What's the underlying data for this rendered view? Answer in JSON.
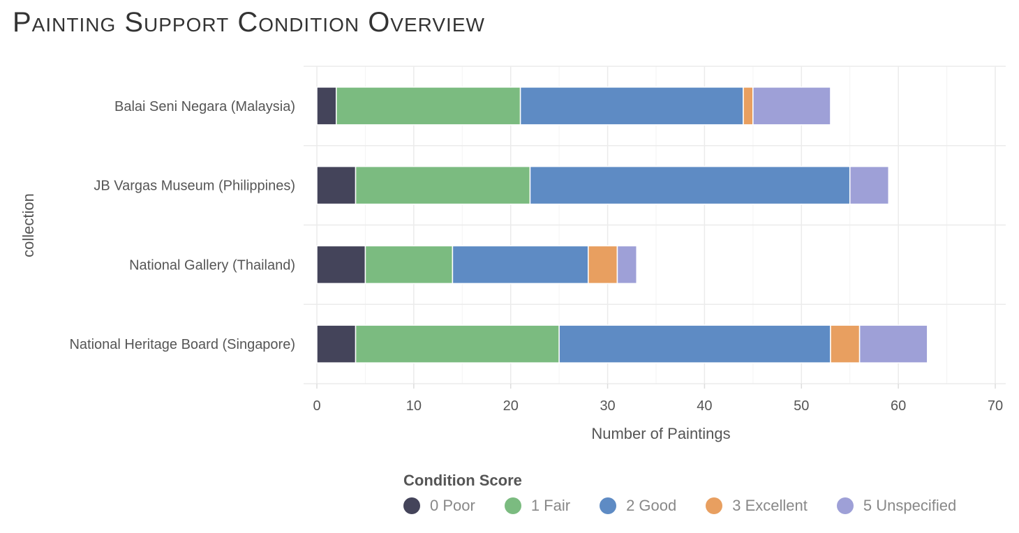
{
  "title": "Painting Support Condition Overview",
  "chart_data": {
    "type": "bar",
    "orientation": "horizontal",
    "stacked": true,
    "categories": [
      "Balai Seni Negara (Malaysia)",
      "JB Vargas Museum (Philippines)",
      "National Gallery (Thailand)",
      "National Heritage Board (Singapore)"
    ],
    "series": [
      {
        "name": "0 Poor",
        "color": "#44445a",
        "values": [
          2,
          4,
          5,
          4
        ]
      },
      {
        "name": "1 Fair",
        "color": "#7bbb80",
        "values": [
          19,
          18,
          9,
          21
        ]
      },
      {
        "name": "2 Good",
        "color": "#5e8bc4",
        "values": [
          23,
          33,
          14,
          28
        ]
      },
      {
        "name": "3 Excellent",
        "color": "#e89f60",
        "values": [
          1,
          0,
          3,
          3
        ]
      },
      {
        "name": "5 Unspecified",
        "color": "#9ea0d7",
        "values": [
          8,
          4,
          2,
          7
        ]
      }
    ],
    "xlabel": "Number of Paintings",
    "ylabel": "collection",
    "xlim": [
      0,
      70
    ],
    "xticks": [
      0,
      10,
      20,
      30,
      40,
      50,
      60,
      70
    ],
    "grid": true,
    "legend_title": "Condition Score",
    "legend_position": "bottom"
  }
}
